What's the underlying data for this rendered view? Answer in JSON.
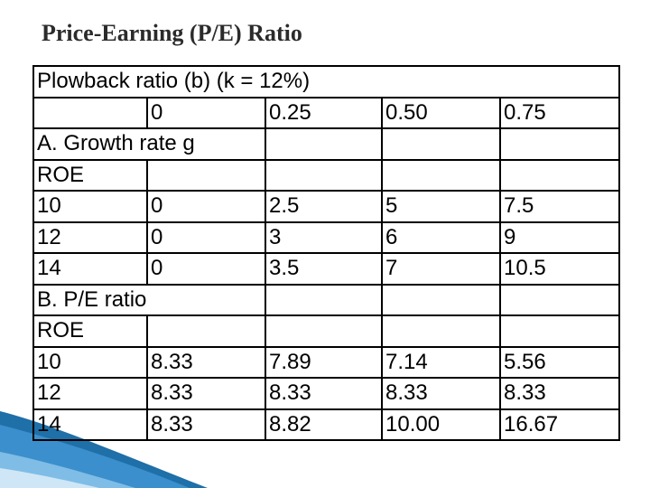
{
  "title": "Price-Earning (P/E) Ratio",
  "header_row": "Plowback ratio (b) (k = 12%)",
  "ratio_row": [
    "",
    "0",
    "0.25",
    "0.50",
    "0.75"
  ],
  "section_a": {
    "label": "A. Growth rate g",
    "roe_label": "ROE",
    "rows": [
      [
        "10",
        "0",
        "2.5",
        "5",
        "7.5"
      ],
      [
        "12",
        "0",
        "3",
        "6",
        "9"
      ],
      [
        "14",
        "0",
        "3.5",
        "7",
        "10.5"
      ]
    ]
  },
  "section_b": {
    "label": "B. P/E ratio",
    "roe_label": "ROE",
    "rows": [
      [
        "10",
        "8.33",
        "7.89",
        "7.14",
        "5.56"
      ],
      [
        "12",
        "8.33",
        "8.33",
        "8.33",
        "8.33"
      ],
      [
        "14",
        "8.33",
        "8.82",
        "10.00",
        "16.67"
      ]
    ]
  },
  "colors": {
    "accent": "#1f6fa8",
    "text": "#000000",
    "title": "#2b2b2b"
  }
}
